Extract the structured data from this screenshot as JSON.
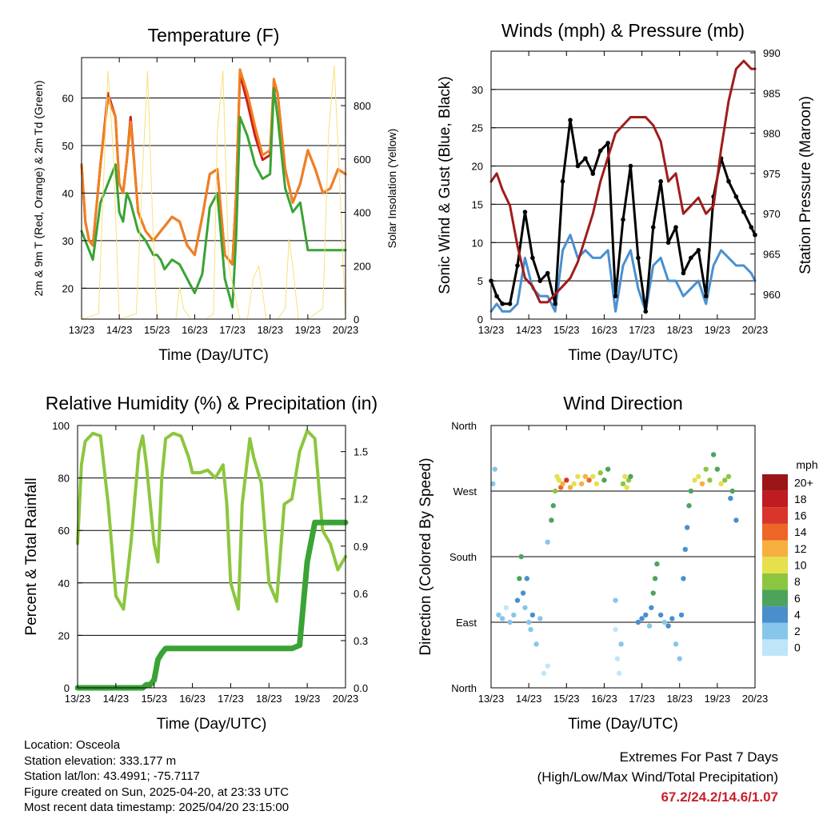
{
  "x_tick_labels": [
    "13/23",
    "14/23",
    "15/23",
    "16/23",
    "17/23",
    "18/23",
    "19/23",
    "20/23"
  ],
  "charts": [
    {
      "id": "temp",
      "type": "line",
      "title": "Temperature (F)",
      "xlabel": "Time (Day/UTC)",
      "ylabel_left": "2m & 9m T (Red, Orange) & 2m Td (Green)",
      "ylabel_right": "Solar Insolation (Yellow)",
      "ylim_left": [
        13.5,
        68.5
      ],
      "yticks_left": [
        20,
        30,
        40,
        50,
        60
      ],
      "ylim_right": [
        0,
        980
      ],
      "yticks_right": [
        0,
        200,
        400,
        600,
        800
      ],
      "x": [
        0,
        0.1,
        0.2,
        0.3,
        0.5,
        0.7,
        0.9,
        1.0,
        1.1,
        1.2,
        1.3,
        1.5,
        1.7,
        1.9,
        2.0,
        2.1,
        2.2,
        2.4,
        2.6,
        2.8,
        3.0,
        3.2,
        3.4,
        3.6,
        3.8,
        4.0,
        4.1,
        4.2,
        4.4,
        4.6,
        4.8,
        5.0,
        5.1,
        5.2,
        5.4,
        5.6,
        5.8,
        6.0,
        6.2,
        6.4,
        6.6,
        6.8,
        7.0
      ],
      "series": [
        {
          "name": "2m T",
          "color": "#cc1f1f",
          "values": [
            46,
            34,
            30,
            29,
            46,
            61,
            56,
            42,
            40,
            47,
            56,
            36,
            32,
            30,
            31,
            32,
            33,
            35,
            34,
            29,
            27,
            35,
            44,
            45,
            27,
            25,
            40,
            65,
            59,
            52,
            47,
            48,
            63,
            61,
            45,
            38,
            42,
            49,
            45,
            40,
            41,
            45,
            44
          ]
        },
        {
          "name": "9m T",
          "color": "#f08020",
          "values": [
            46,
            34,
            30,
            29,
            46,
            60,
            56,
            42,
            40,
            47,
            55,
            36,
            32,
            30,
            31,
            32,
            33,
            35,
            34,
            29,
            27,
            35,
            44,
            45,
            27,
            25,
            40,
            66,
            61,
            54,
            48,
            49,
            64,
            61,
            45,
            38,
            42,
            49,
            45,
            40,
            41,
            45,
            44
          ]
        },
        {
          "name": "2m Td",
          "color": "#3aa335",
          "values": [
            32,
            30,
            28,
            26,
            38,
            42,
            46,
            36,
            34,
            40,
            38,
            32,
            30,
            27,
            27,
            26,
            24,
            26,
            25,
            22,
            19,
            23,
            37,
            40,
            22,
            16,
            31,
            56,
            52,
            46,
            43,
            44,
            62,
            56,
            41,
            36,
            38,
            28,
            28,
            28,
            28,
            28,
            28
          ]
        },
        {
          "name": "Solar Insolation",
          "axis": "right",
          "color": "#f6e17a",
          "x": [
            0,
            0.45,
            0.58,
            0.7,
            0.85,
            1.0,
            1.45,
            1.6,
            1.75,
            1.9,
            2.0,
            2.5,
            2.6,
            2.7,
            2.9,
            3.0,
            3.3,
            3.5,
            3.6,
            3.75,
            3.9,
            4.2,
            4.4,
            4.55,
            4.7,
            4.9,
            5.2,
            5.4,
            5.5,
            5.6,
            5.75,
            6.0,
            6.4,
            6.55,
            6.7,
            6.85,
            7.0
          ],
          "values": [
            0,
            20,
            500,
            930,
            600,
            0,
            20,
            500,
            930,
            300,
            0,
            0,
            120,
            40,
            0,
            0,
            0,
            20,
            700,
            930,
            200,
            0,
            0,
            150,
            200,
            0,
            0,
            40,
            300,
            200,
            0,
            0,
            40,
            700,
            950,
            500,
            0
          ]
        }
      ]
    },
    {
      "id": "wind",
      "type": "line",
      "title": "Winds (mph) & Pressure (mb)",
      "xlabel": "Time (Day/UTC)",
      "ylabel_left": "Sonic Wind & Gust (Blue, Black)",
      "ylabel_right": "Station Pressure (Maroon)",
      "ylim_left": [
        0,
        35
      ],
      "yticks_left": [
        0,
        5,
        10,
        15,
        20,
        25,
        30
      ],
      "ylim_right": [
        956.9,
        990.2
      ],
      "yticks_right": [
        960,
        965,
        970,
        975,
        980,
        985,
        990
      ],
      "x": [
        0,
        0.15,
        0.3,
        0.5,
        0.7,
        0.9,
        1.1,
        1.3,
        1.5,
        1.7,
        1.9,
        2.1,
        2.3,
        2.5,
        2.7,
        2.9,
        3.1,
        3.3,
        3.5,
        3.7,
        3.9,
        4.1,
        4.3,
        4.5,
        4.7,
        4.9,
        5.1,
        5.3,
        5.5,
        5.7,
        5.9,
        6.1,
        6.3,
        6.5,
        6.7,
        6.9,
        7.0
      ],
      "series": [
        {
          "name": "Sonic Wind",
          "color": "#4a90d0",
          "values": [
            1,
            2,
            1,
            1,
            2,
            8,
            4,
            3,
            3,
            1,
            9,
            11,
            8,
            9,
            8,
            8,
            9,
            1,
            7,
            9,
            4,
            1,
            7,
            8,
            5,
            5,
            3,
            4,
            5,
            2,
            7,
            9,
            8,
            7,
            7,
            6,
            5
          ]
        },
        {
          "name": "Gust",
          "color": "#000000",
          "values": [
            5,
            3,
            2,
            2,
            7,
            14,
            8,
            5,
            6,
            2,
            18,
            26,
            20,
            21,
            19,
            22,
            23,
            3,
            13,
            20,
            8,
            1,
            12,
            18,
            10,
            12,
            6,
            8,
            9,
            3,
            16,
            21,
            18,
            16,
            14,
            12,
            11
          ]
        },
        {
          "name": "Station Pressure",
          "axis": "right",
          "color": "#a01c1c",
          "values": [
            974,
            975,
            973,
            971,
            966,
            962,
            961,
            959,
            959,
            960,
            961,
            962,
            964,
            967,
            970,
            974,
            977,
            980,
            981,
            982,
            982,
            982,
            981,
            979,
            974,
            975,
            970,
            971,
            972,
            970,
            971,
            978,
            984,
            988,
            989,
            988,
            988
          ]
        }
      ]
    },
    {
      "id": "rh",
      "type": "line",
      "title": "Relative Humidity (%) & Precipitation (in)",
      "xlabel": "Time (Day/UTC)",
      "ylabel_left": "Percent & Total Rainfall",
      "ylim_left": [
        0,
        100
      ],
      "yticks_left": [
        0,
        20,
        40,
        60,
        80,
        100
      ],
      "ylim_right": [
        0,
        1.666
      ],
      "yticks_right": [
        "0.0",
        "0.3",
        "0.6",
        "0.9",
        "1.2",
        "1.5"
      ],
      "x": [
        0,
        0.1,
        0.2,
        0.4,
        0.6,
        0.8,
        1.0,
        1.2,
        1.4,
        1.6,
        1.7,
        1.8,
        1.9,
        2.0,
        2.1,
        2.2,
        2.3,
        2.5,
        2.7,
        2.9,
        3.0,
        3.2,
        3.4,
        3.6,
        3.8,
        3.9,
        4.0,
        4.2,
        4.3,
        4.5,
        4.6,
        4.8,
        5.0,
        5.2,
        5.4,
        5.6,
        5.8,
        6.0,
        6.2,
        6.4,
        6.6,
        6.8,
        7.0
      ],
      "series": [
        {
          "name": "Relative Humidity",
          "color": "#8cc63e",
          "values": [
            55,
            85,
            94,
            97,
            96,
            70,
            35,
            30,
            56,
            90,
            96,
            85,
            70,
            55,
            48,
            80,
            95,
            97,
            96,
            88,
            82,
            82,
            83,
            80,
            85,
            70,
            40,
            30,
            70,
            95,
            88,
            78,
            40,
            33,
            70,
            72,
            90,
            98,
            95,
            60,
            55,
            45,
            50
          ]
        },
        {
          "name": "Total Rainfall",
          "axis": "right",
          "color": "#3aa335",
          "values": [
            0,
            0,
            0,
            0,
            0,
            0,
            0,
            0,
            0,
            0,
            0,
            0.02,
            0.02,
            0.05,
            0.18,
            0.22,
            0.25,
            0.25,
            0.25,
            0.25,
            0.25,
            0.25,
            0.25,
            0.25,
            0.25,
            0.25,
            0.25,
            0.25,
            0.25,
            0.25,
            0.25,
            0.25,
            0.25,
            0.25,
            0.25,
            0.25,
            0.27,
            0.8,
            1.05,
            1.05,
            1.05,
            1.05,
            1.05
          ]
        }
      ]
    },
    {
      "id": "dir",
      "type": "scatter",
      "title": "Wind Direction",
      "xlabel": "Time (Day/UTC)",
      "ylabel_left": "Direction (Colored By Speed)",
      "ylim_left": [
        0,
        360
      ],
      "ytick_labels": [
        "North",
        "East",
        "South",
        "West",
        "North"
      ],
      "ytick_values": [
        0,
        90,
        180,
        270,
        360
      ],
      "colorbar_title": "mph",
      "colorbar_labels": [
        "0",
        "2",
        "4",
        "6",
        "8",
        "10",
        "12",
        "14",
        "16",
        "18",
        "20+"
      ],
      "colorbar_colors": [
        "#bfe6f8",
        "#86c6ea",
        "#4a8fcc",
        "#4ca45c",
        "#8cc63e",
        "#e6e04a",
        "#f7b040",
        "#ee6528",
        "#d9352a",
        "#c01b20",
        "#9c1518"
      ],
      "points": [
        [
          0.05,
          280,
          2
        ],
        [
          0.1,
          300,
          2
        ],
        [
          0.2,
          100,
          1
        ],
        [
          0.3,
          95,
          1
        ],
        [
          0.4,
          110,
          0
        ],
        [
          0.5,
          90,
          1
        ],
        [
          0.6,
          100,
          2
        ],
        [
          0.7,
          120,
          3
        ],
        [
          0.75,
          150,
          5
        ],
        [
          0.8,
          180,
          6
        ],
        [
          0.85,
          130,
          4
        ],
        [
          0.9,
          110,
          2
        ],
        [
          0.95,
          150,
          4
        ],
        [
          1.0,
          90,
          2
        ],
        [
          1.05,
          80,
          1
        ],
        [
          1.1,
          100,
          3
        ],
        [
          1.2,
          60,
          1
        ],
        [
          1.3,
          95,
          2
        ],
        [
          1.4,
          20,
          0
        ],
        [
          1.5,
          30,
          0
        ],
        [
          1.5,
          200,
          2
        ],
        [
          1.6,
          230,
          5
        ],
        [
          1.65,
          250,
          6
        ],
        [
          1.7,
          270,
          7
        ],
        [
          1.75,
          290,
          9
        ],
        [
          1.8,
          285,
          10
        ],
        [
          1.85,
          275,
          14
        ],
        [
          1.9,
          280,
          12
        ],
        [
          2.0,
          285,
          16
        ],
        [
          2.1,
          275,
          11
        ],
        [
          2.2,
          280,
          9
        ],
        [
          2.3,
          290,
          10
        ],
        [
          2.4,
          280,
          12
        ],
        [
          2.5,
          290,
          11
        ],
        [
          2.6,
          285,
          13
        ],
        [
          2.7,
          290,
          9
        ],
        [
          2.8,
          280,
          10
        ],
        [
          2.9,
          295,
          7
        ],
        [
          3.0,
          285,
          6
        ],
        [
          3.1,
          300,
          5
        ],
        [
          3.3,
          120,
          1
        ],
        [
          3.3,
          80,
          0
        ],
        [
          3.35,
          40,
          0
        ],
        [
          3.4,
          20,
          0
        ],
        [
          3.45,
          60,
          1
        ],
        [
          3.5,
          280,
          7
        ],
        [
          3.55,
          290,
          10
        ],
        [
          3.6,
          275,
          9
        ],
        [
          3.65,
          285,
          8
        ],
        [
          3.7,
          290,
          6
        ],
        [
          3.9,
          90,
          3
        ],
        [
          4.0,
          95,
          4
        ],
        [
          4.1,
          100,
          3
        ],
        [
          4.2,
          85,
          2
        ],
        [
          4.25,
          110,
          4
        ],
        [
          4.3,
          130,
          6
        ],
        [
          4.35,
          150,
          6
        ],
        [
          4.4,
          170,
          5
        ],
        [
          4.5,
          100,
          3
        ],
        [
          4.6,
          90,
          2
        ],
        [
          4.7,
          85,
          3
        ],
        [
          4.8,
          95,
          4
        ],
        [
          4.9,
          60,
          2
        ],
        [
          5.0,
          40,
          2
        ],
        [
          5.05,
          100,
          3
        ],
        [
          5.1,
          150,
          3
        ],
        [
          5.15,
          190,
          3
        ],
        [
          5.2,
          220,
          4
        ],
        [
          5.25,
          250,
          5
        ],
        [
          5.3,
          270,
          6
        ],
        [
          5.4,
          285,
          10
        ],
        [
          5.5,
          290,
          9
        ],
        [
          5.6,
          280,
          12
        ],
        [
          5.7,
          300,
          8
        ],
        [
          5.8,
          285,
          7
        ],
        [
          5.9,
          320,
          6
        ],
        [
          6.0,
          300,
          6
        ],
        [
          6.1,
          280,
          9
        ],
        [
          6.2,
          285,
          8
        ],
        [
          6.3,
          290,
          7
        ],
        [
          6.35,
          260,
          3
        ],
        [
          6.4,
          270,
          5
        ],
        [
          6.5,
          230,
          4
        ]
      ]
    }
  ],
  "info_lines": [
    "Location: Osceola",
    "Station elevation: 333.177 m",
    "Station lat/lon: 43.4991; -75.7117",
    "Figure created on Sun, 2025-04-20, at 23:33 UTC",
    "Most recent data timestamp: 2025/04/20 23:15:00"
  ],
  "extremes": {
    "title": "Extremes For Past 7 Days",
    "subtitle": "(High/Low/Max Wind/Total Precipitation)",
    "values": "67.2/24.2/14.6/1.07"
  }
}
